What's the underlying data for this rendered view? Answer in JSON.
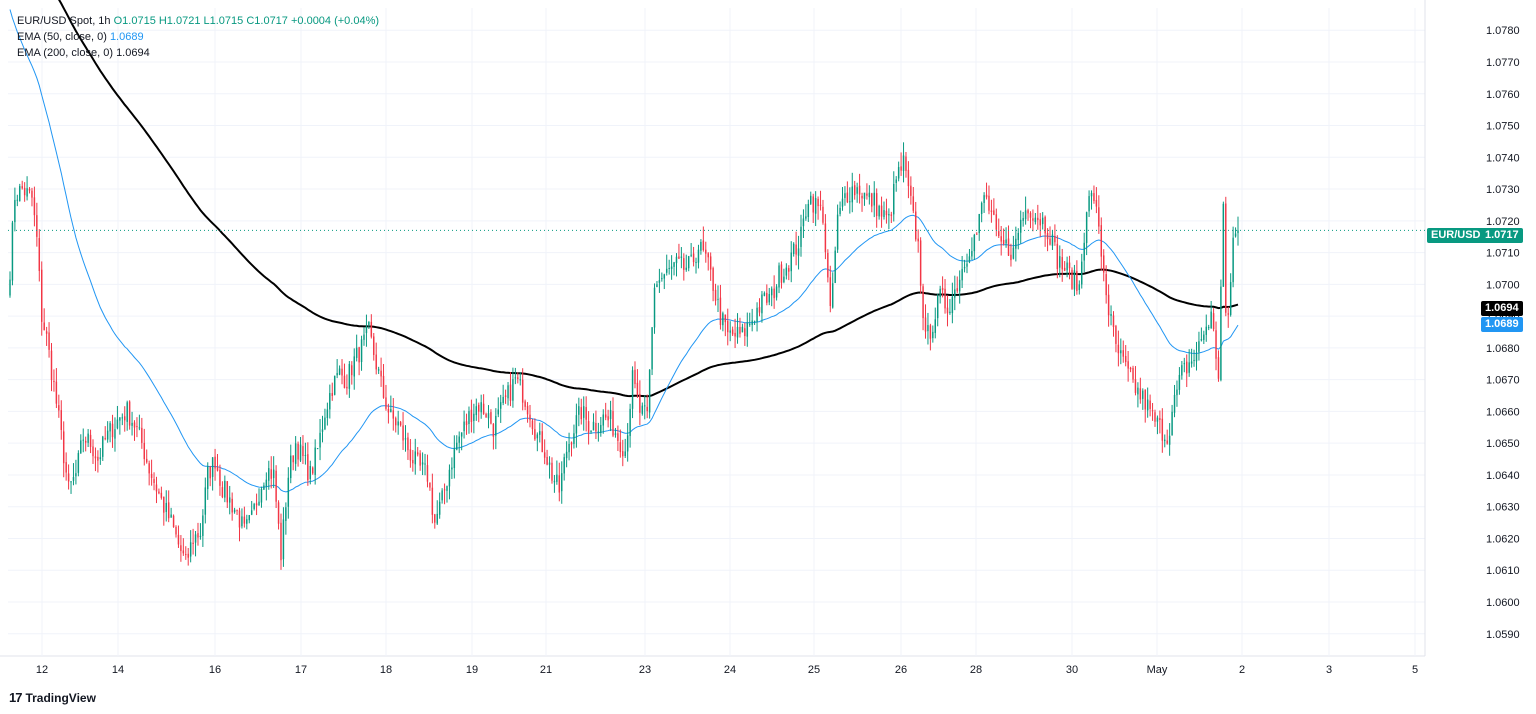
{
  "legend": {
    "symbol": "EUR/USD Spot, 1h",
    "ohlc": "O1.0715  H1.0721  L1.0715  C1.0717  +0.0004 (+0.04%)",
    "ema50_label": "EMA (50, close, 0)",
    "ema50_value": "1.0689",
    "ema200_label": "EMA (200, close, 0)",
    "ema200_value": "1.0694"
  },
  "price_tags": {
    "pair": "EUR/USD",
    "last": "1.0717",
    "ema200": "1.0694",
    "ema50": "1.0689"
  },
  "brand": {
    "name": "TradingView"
  },
  "colors": {
    "up": "#089981",
    "down": "#f23645",
    "ema50": "#2196f3",
    "ema200": "#000000",
    "grid": "#f0f3fa"
  },
  "chart_data": {
    "type": "candlestick",
    "title": "EUR/USD Spot, 1h",
    "xlabel": "",
    "ylabel": "",
    "ylim": [
      1.0583,
      1.0787
    ],
    "yticks": [
      "1.0590",
      "1.0600",
      "1.0610",
      "1.0620",
      "1.0630",
      "1.0640",
      "1.0650",
      "1.0660",
      "1.0670",
      "1.0680",
      "1.0690",
      "1.0700",
      "1.0710",
      "1.0720",
      "1.0730",
      "1.0740",
      "1.0750",
      "1.0760",
      "1.0770",
      "1.0780"
    ],
    "x_labels": [
      "12",
      "14",
      "16",
      "17",
      "18",
      "19",
      "21",
      "23",
      "24",
      "25",
      "26",
      "28",
      "30",
      "May",
      "2",
      "3",
      "5"
    ],
    "last_price": 1.0717,
    "anchors": [
      [
        0,
        1.0705
      ],
      [
        2,
        1.0728
      ],
      [
        5,
        1.073
      ],
      [
        9,
        1.0727
      ],
      [
        11,
        1.0714
      ],
      [
        13,
        1.069
      ],
      [
        15,
        1.0683
      ],
      [
        18,
        1.0668
      ],
      [
        21,
        1.0652
      ],
      [
        24,
        1.0635
      ],
      [
        27,
        1.064
      ],
      [
        30,
        1.0652
      ],
      [
        33,
        1.065
      ],
      [
        36,
        1.0645
      ],
      [
        39,
        1.0651
      ],
      [
        42,
        1.0655
      ],
      [
        45,
        1.0658
      ],
      [
        48,
        1.066
      ],
      [
        51,
        1.0656
      ],
      [
        54,
        1.065
      ],
      [
        57,
        1.0642
      ],
      [
        60,
        1.0636
      ],
      [
        63,
        1.063
      ],
      [
        66,
        1.0625
      ],
      [
        69,
        1.0618
      ],
      [
        72,
        1.0612
      ],
      [
        75,
        1.062
      ],
      [
        78,
        1.0622
      ],
      [
        81,
        1.064
      ],
      [
        84,
        1.0645
      ],
      [
        87,
        1.0636
      ],
      [
        90,
        1.0632
      ],
      [
        93,
        1.0628
      ],
      [
        96,
        1.0622
      ],
      [
        99,
        1.0626
      ],
      [
        102,
        1.0635
      ],
      [
        105,
        1.0642
      ],
      [
        108,
        1.064
      ],
      [
        111,
        1.0615
      ],
      [
        114,
        1.064
      ],
      [
        117,
        1.065
      ],
      [
        120,
        1.0645
      ],
      [
        123,
        1.064
      ],
      [
        126,
        1.0648
      ],
      [
        129,
        1.066
      ],
      [
        132,
        1.0668
      ],
      [
        135,
        1.0672
      ],
      [
        138,
        1.067
      ],
      [
        141,
        1.0676
      ],
      [
        144,
        1.068
      ],
      [
        147,
        1.0685
      ],
      [
        150,
        1.0675
      ],
      [
        153,
        1.0665
      ],
      [
        156,
        1.0658
      ],
      [
        159,
        1.0656
      ],
      [
        162,
        1.065
      ],
      [
        165,
        1.0645
      ],
      [
        168,
        1.0642
      ],
      [
        171,
        1.064
      ],
      [
        174,
        1.0625
      ],
      [
        177,
        1.0632
      ],
      [
        180,
        1.0642
      ],
      [
        183,
        1.065
      ],
      [
        186,
        1.0655
      ],
      [
        189,
        1.066
      ],
      [
        192,
        1.0662
      ],
      [
        195,
        1.066
      ],
      [
        198,
        1.0655
      ],
      [
        201,
        1.066
      ],
      [
        204,
        1.0665
      ],
      [
        207,
        1.067
      ],
      [
        210,
        1.0666
      ],
      [
        213,
        1.066
      ],
      [
        216,
        1.0652
      ],
      [
        219,
        1.0648
      ],
      [
        222,
        1.064
      ],
      [
        225,
        1.0635
      ],
      [
        228,
        1.0648
      ],
      [
        231,
        1.0655
      ],
      [
        234,
        1.066
      ],
      [
        237,
        1.0656
      ],
      [
        240,
        1.0656
      ],
      [
        243,
        1.0658
      ],
      [
        246,
        1.0657
      ],
      [
        249,
        1.0652
      ],
      [
        252,
        1.0648
      ],
      [
        255,
        1.067
      ],
      [
        258,
        1.066
      ],
      [
        261,
        1.0658
      ],
      [
        264,
        1.07
      ],
      [
        267,
        1.0702
      ],
      [
        270,
        1.0704
      ],
      [
        273,
        1.0706
      ],
      [
        276,
        1.0705
      ],
      [
        279,
        1.0706
      ],
      [
        282,
        1.0712
      ],
      [
        285,
        1.0708
      ],
      [
        288,
        1.07
      ],
      [
        291,
        1.069
      ],
      [
        294,
        1.0684
      ],
      [
        297,
        1.0684
      ],
      [
        300,
        1.0684
      ],
      [
        303,
        1.0688
      ],
      [
        306,
        1.0692
      ],
      [
        309,
        1.0695
      ],
      [
        312,
        1.0696
      ],
      [
        315,
        1.0703
      ],
      [
        318,
        1.0706
      ],
      [
        321,
        1.071
      ],
      [
        324,
        1.0715
      ],
      [
        327,
        1.0728
      ],
      [
        330,
        1.0725
      ],
      [
        333,
        1.0722
      ],
      [
        336,
        1.069
      ],
      [
        339,
        1.072
      ],
      [
        342,
        1.0728
      ],
      [
        345,
        1.073
      ],
      [
        348,
        1.073
      ],
      [
        351,
        1.0727
      ],
      [
        354,
        1.0726
      ],
      [
        357,
        1.0722
      ],
      [
        360,
        1.072
      ],
      [
        363,
        1.0733
      ],
      [
        366,
        1.0738
      ],
      [
        369,
        1.0725
      ],
      [
        372,
        1.0712
      ],
      [
        375,
        1.0682
      ],
      [
        378,
        1.0688
      ],
      [
        381,
        1.0696
      ],
      [
        384,
        1.0693
      ],
      [
        387,
        1.0698
      ],
      [
        390,
        1.0705
      ],
      [
        393,
        1.0712
      ],
      [
        396,
        1.0716
      ],
      [
        399,
        1.0728
      ],
      [
        402,
        1.0722
      ],
      [
        405,
        1.0712
      ],
      [
        408,
        1.0712
      ],
      [
        411,
        1.071
      ],
      [
        414,
        1.072
      ],
      [
        417,
        1.0725
      ],
      [
        420,
        1.0722
      ],
      [
        423,
        1.072
      ],
      [
        426,
        1.0716
      ],
      [
        429,
        1.0708
      ],
      [
        432,
        1.0705
      ],
      [
        435,
        1.0702
      ],
      [
        438,
        1.0699
      ],
      [
        441,
        1.0725
      ],
      [
        444,
        1.0728
      ],
      [
        447,
        1.071
      ],
      [
        450,
        1.0692
      ],
      [
        453,
        1.068
      ],
      [
        456,
        1.0675
      ],
      [
        459,
        1.067
      ],
      [
        462,
        1.0666
      ],
      [
        465,
        1.0663
      ],
      [
        468,
        1.0658
      ],
      [
        471,
        1.0655
      ],
      [
        474,
        1.0652
      ],
      [
        477,
        1.0663
      ],
      [
        480,
        1.0672
      ],
      [
        483,
        1.0675
      ],
      [
        486,
        1.0678
      ],
      [
        489,
        1.0685
      ],
      [
        492,
        1.069
      ],
      [
        495,
        1.0672
      ],
      [
        497,
        1.0725
      ],
      [
        498,
        1.0688
      ],
      [
        499,
        1.069
      ],
      [
        501,
        1.0714
      ],
      [
        503,
        1.0717
      ]
    ],
    "ema50_value": 1.0689,
    "ema200_value": 1.0694,
    "series": [
      {
        "name": "EMA (50, close, 0)"
      },
      {
        "name": "EMA (200, close, 0)"
      }
    ]
  }
}
